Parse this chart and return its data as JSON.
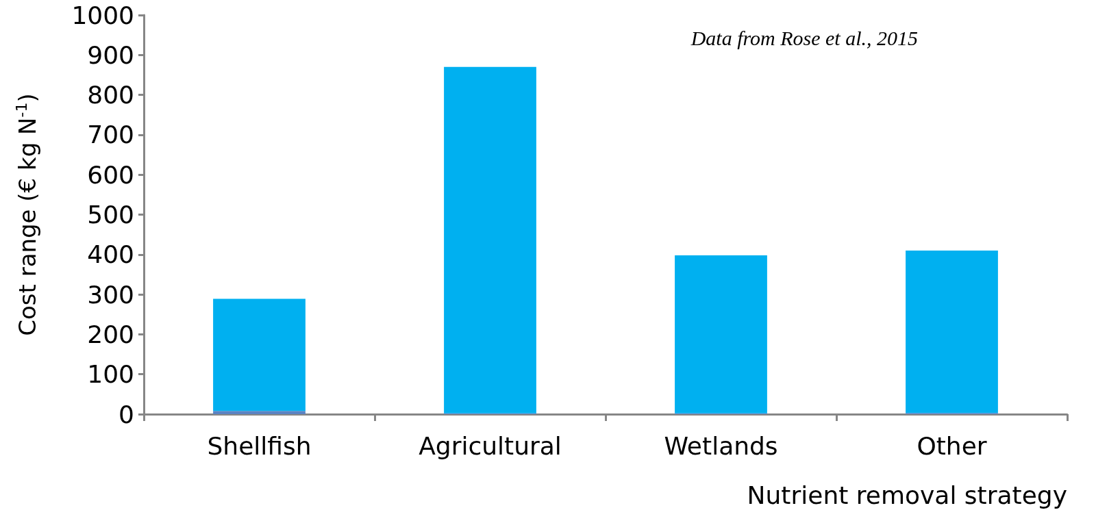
{
  "chart_data": {
    "type": "bar",
    "stacked": true,
    "xlabel": "Nutrient removal strategy",
    "ylabel": "Cost range (€ kg N$^{-1}$)",
    "annotations": [
      "Data from Rose et al., 2015"
    ],
    "categories": [
      "Shellfish",
      "Agricultural",
      "Wetlands",
      "Other"
    ],
    "series": [
      {
        "color": "#5b84c4",
        "values": [
          8,
          2,
          2,
          3
        ]
      },
      {
        "color": "#00b0f0",
        "values": [
          281,
          868,
          396,
          407
        ]
      }
    ],
    "ylim": [
      0,
      1000
    ],
    "yticks": [
      0,
      100,
      200,
      300,
      400,
      500,
      600,
      700,
      800,
      900,
      1000
    ],
    "grid": false
  }
}
